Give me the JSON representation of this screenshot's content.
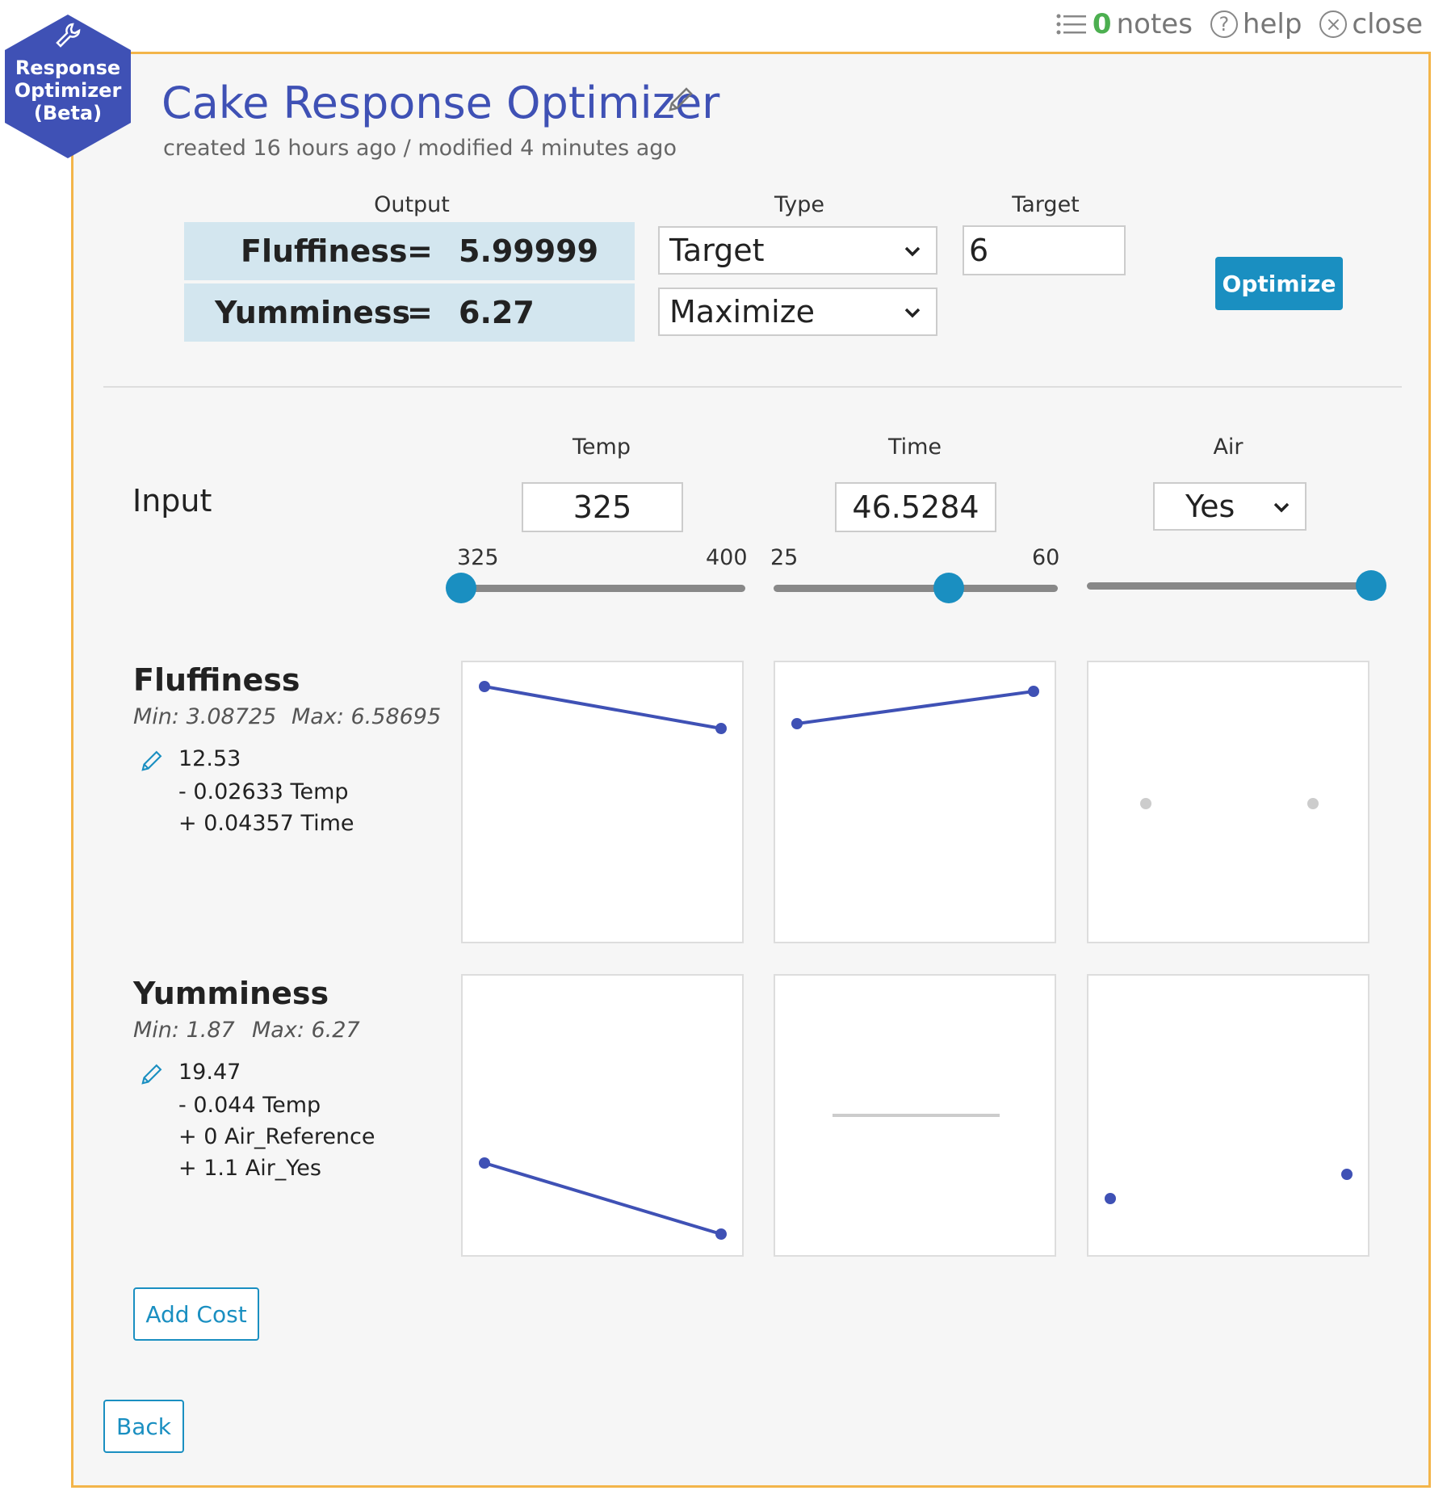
{
  "topbar": {
    "notes_count": "0",
    "notes_label": "notes",
    "help_label": "help",
    "close_label": "close"
  },
  "badge": {
    "line1": "Response",
    "line2": "Optimizer",
    "line3": "(Beta)"
  },
  "header": {
    "title": "Cake Response Optimizer",
    "subtitle": "created 16 hours ago / modified 4 minutes ago"
  },
  "outputs_section": {
    "col_output": "Output",
    "col_type": "Type",
    "col_target": "Target",
    "rows": [
      {
        "name": "Fluffiness",
        "eq": "=",
        "value": "5.99999",
        "type": "Target",
        "target": "6"
      },
      {
        "name": "Yumminess",
        "eq": "=",
        "value": "6.27",
        "type": "Maximize",
        "target": ""
      }
    ],
    "optimize_label": "Optimize"
  },
  "inputs_section": {
    "label": "Input",
    "factors": [
      {
        "name": "Temp",
        "value": "325",
        "min_label": "325",
        "max_label": "400",
        "min": 325,
        "max": 400,
        "current": 325
      },
      {
        "name": "Time",
        "value": "46.5284",
        "min_label": "25",
        "max_label": "60",
        "min": 25,
        "max": 60,
        "current": 46.5284
      },
      {
        "name": "Air",
        "value": "Yes",
        "level_fraction": 1.0
      }
    ]
  },
  "responses": [
    {
      "name": "Fluffiness",
      "min_label": "Min: 3.08725",
      "max_label": "Max: 6.58695",
      "equation": [
        "12.53",
        "- 0.02633 Temp",
        "+ 0.04357 Time"
      ]
    },
    {
      "name": "Yumminess",
      "min_label": "Min: 1.87",
      "max_label": "Max: 6.27",
      "equation": [
        "19.47",
        "- 0.044 Temp",
        "+ 0 Air_Reference",
        "+ 1.1 Air_Yes"
      ]
    }
  ],
  "plot_colors": {
    "active": "#3f51b5",
    "inactive": "#cccccc"
  },
  "buttons": {
    "add_cost": "Add Cost",
    "back": "Back"
  }
}
